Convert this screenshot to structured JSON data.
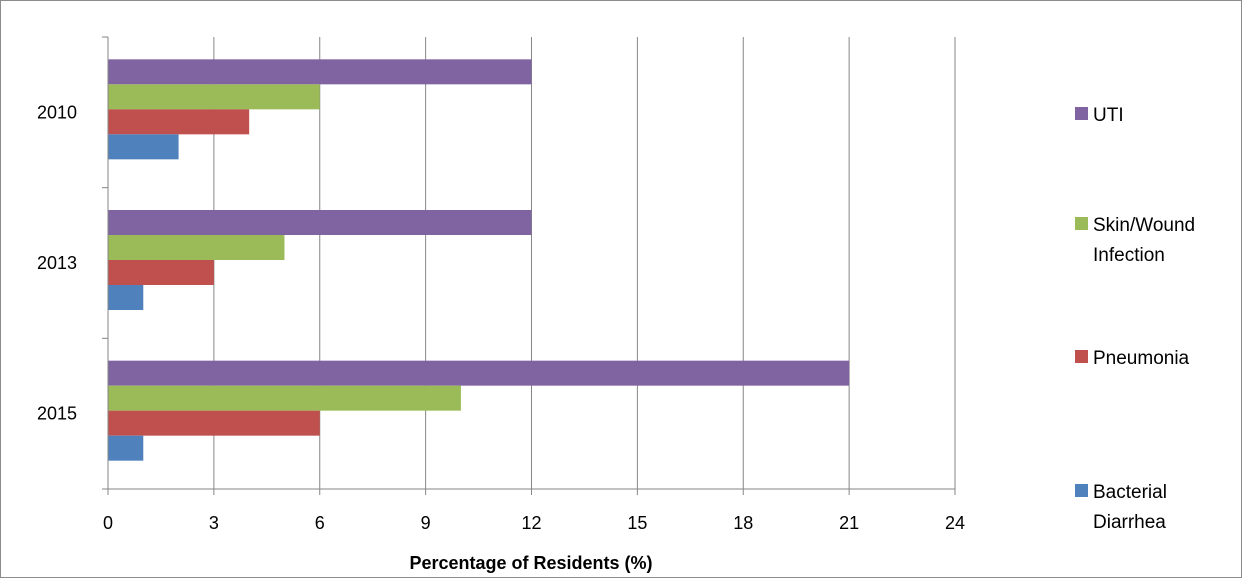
{
  "chart_data": {
    "type": "bar",
    "orientation": "horizontal",
    "title": "",
    "xlabel": "Percentage of Residents (%)",
    "ylabel": "",
    "xlim": [
      0,
      24
    ],
    "x_ticks": [
      0,
      3,
      6,
      9,
      12,
      15,
      18,
      21,
      24
    ],
    "grid": "vertical major gridlines",
    "legend_position": "right",
    "categories": [
      "2010",
      "2013",
      "2015"
    ],
    "series": [
      {
        "name": "UTI",
        "color": "#8064A2",
        "values": [
          12,
          12,
          21
        ]
      },
      {
        "name": "Skin/Wound Infection",
        "color": "#9BBB59",
        "values": [
          6,
          5,
          10
        ]
      },
      {
        "name": "Pneumonia",
        "color": "#C0504D",
        "values": [
          4,
          3,
          6
        ]
      },
      {
        "name": "Bacterial Diarrhea",
        "color": "#4F81BD",
        "values": [
          2,
          1,
          1
        ]
      }
    ]
  }
}
